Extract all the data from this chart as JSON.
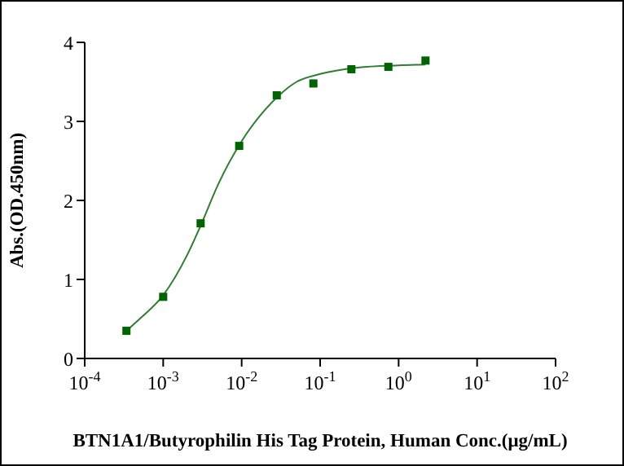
{
  "chart_data": {
    "type": "scatter",
    "xlabel": "BTN1A1/Butyrophilin His Tag Protein, Human Conc.(μg/mL)",
    "ylabel": "Abs.(OD.450nm)",
    "log": "x",
    "xlim": [
      0.0001,
      100
    ],
    "xticks": [
      {
        "value": 0.0001,
        "label": "10$^{-4}$"
      },
      {
        "value": 0.001,
        "label": "10$^{-3}$"
      },
      {
        "value": 0.01,
        "label": "10$^{-2}$"
      },
      {
        "value": 0.1,
        "label": "10$^{-1}$"
      },
      {
        "value": 1,
        "label": "10$^{0}$"
      },
      {
        "value": 10,
        "label": "10$^{1}$"
      },
      {
        "value": 100,
        "label": "10$^{2}$"
      }
    ],
    "ylim": [
      0,
      4
    ],
    "yticks": [
      0,
      1,
      2,
      3,
      4
    ],
    "grid": false,
    "legend": false,
    "series": [
      {
        "color": "#006400",
        "marker": "square",
        "x": [
          0.00034,
          0.001,
          0.003,
          0.0093,
          0.028,
          0.082,
          0.25,
          0.74,
          2.2
        ],
        "values": [
          0.35,
          0.78,
          1.71,
          2.69,
          3.33,
          3.48,
          3.66,
          3.69,
          3.77
        ]
      },
      {
        "type": "line",
        "color": "#2e7d32",
        "marker": "none",
        "line_style": "solid",
        "x": [
          0.00034,
          0.0005,
          0.001,
          0.002,
          0.003,
          0.005,
          0.01,
          0.02,
          0.03,
          0.05,
          0.1,
          0.3,
          1,
          2.2
        ],
        "values": [
          0.35,
          0.5,
          0.8,
          1.3,
          1.68,
          2.2,
          2.75,
          3.15,
          3.33,
          3.5,
          3.6,
          3.68,
          3.71,
          3.72
        ]
      }
    ]
  }
}
